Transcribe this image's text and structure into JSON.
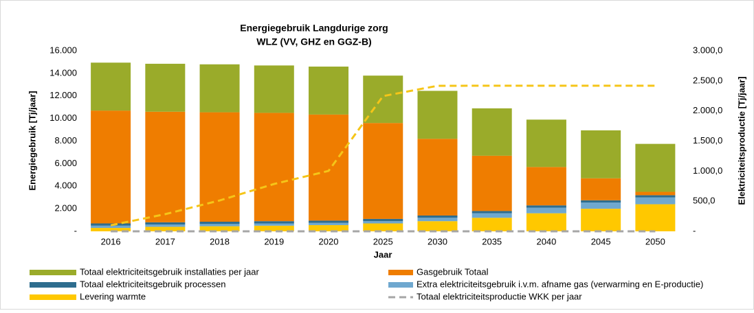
{
  "chart_data": {
    "type": "bar",
    "stacked": true,
    "title": "Energiegebruik Langdurige zorg",
    "subtitle": "WLZ (VV, GHZ en GGZ-B)",
    "x_label": "Jaar",
    "y_label": "Energiegebruik  [Tj/jaar]",
    "y2_label": "Elektriciteitsproductie [Tj/jaar]",
    "categories": [
      "2016",
      "2017",
      "2018",
      "2019",
      "2020",
      "2025",
      "2030",
      "2035",
      "2040",
      "2045",
      "2050"
    ],
    "series": [
      {
        "name": "Totaal elektriciteitsgebruik installaties per jaar",
        "type": "bar",
        "color": "#9aab2a",
        "values": [
          4250,
          4250,
          4250,
          4200,
          4250,
          4200,
          4250,
          4200,
          4200,
          4250,
          4250
        ]
      },
      {
        "name": "Gasgebruik Totaal",
        "type": "bar",
        "color": "#ef7d00",
        "values": [
          10000,
          9800,
          9700,
          9600,
          9400,
          8500,
          6800,
          4900,
          3400,
          1950,
          300
        ]
      },
      {
        "name": "Totaal elektriciteitsgebruik processen",
        "type": "bar",
        "color": "#2e6d8e",
        "values": [
          200,
          200,
          200,
          200,
          200,
          200,
          200,
          200,
          200,
          200,
          200
        ]
      },
      {
        "name": "Extra elektriciteitsgebruik i.v.m. afname gas (verwarming en E-productie)",
        "type": "bar",
        "color": "#6fa8cf",
        "values": [
          200,
          200,
          200,
          200,
          200,
          200,
          300,
          400,
          500,
          550,
          600
        ]
      },
      {
        "name": "Levering warmte",
        "type": "bar",
        "color": "#ffc800",
        "values": [
          300,
          400,
          450,
          500,
          550,
          700,
          900,
          1200,
          1600,
          2000,
          2400
        ]
      },
      {
        "name": "Totaal elektriciteitsproductie WKK per jaar",
        "type": "line",
        "dashed": true,
        "axis": "y2",
        "color": "#a6a6a6",
        "values": [
          0,
          0,
          0,
          0,
          0,
          0,
          0,
          0,
          0,
          0,
          0
        ]
      },
      {
        "type": "line",
        "dashed": true,
        "axis": "y2",
        "color": "#f5c518",
        "values": [
          100,
          285,
          513,
          787,
          1004,
          2247,
          2418,
          2420,
          2420,
          2420,
          2420
        ]
      }
    ],
    "ylim": [
      0,
      16000
    ],
    "yticks": [
      {
        "value": 0,
        "label": "-"
      },
      {
        "value": 2000,
        "label": "2.000"
      },
      {
        "value": 4000,
        "label": "4.000"
      },
      {
        "value": 6000,
        "label": "6.000"
      },
      {
        "value": 8000,
        "label": "8.000"
      },
      {
        "value": 10000,
        "label": "10.000"
      },
      {
        "value": 12000,
        "label": "12.000"
      },
      {
        "value": 14000,
        "label": "14.000"
      },
      {
        "value": 16000,
        "label": "16.000"
      }
    ],
    "y2lim": [
      0,
      3000
    ],
    "y2ticks": [
      {
        "value": 0,
        "label": "-"
      },
      {
        "value": 500,
        "label": "500,0"
      },
      {
        "value": 1000,
        "label": "1.000,0"
      },
      {
        "value": 1500,
        "label": "1.500,0"
      },
      {
        "value": 2000,
        "label": "2.000,0"
      },
      {
        "value": 2500,
        "label": "2.500,0"
      },
      {
        "value": 3000,
        "label": "3.000,0"
      }
    ],
    "grid": false,
    "legend": "bottom"
  }
}
